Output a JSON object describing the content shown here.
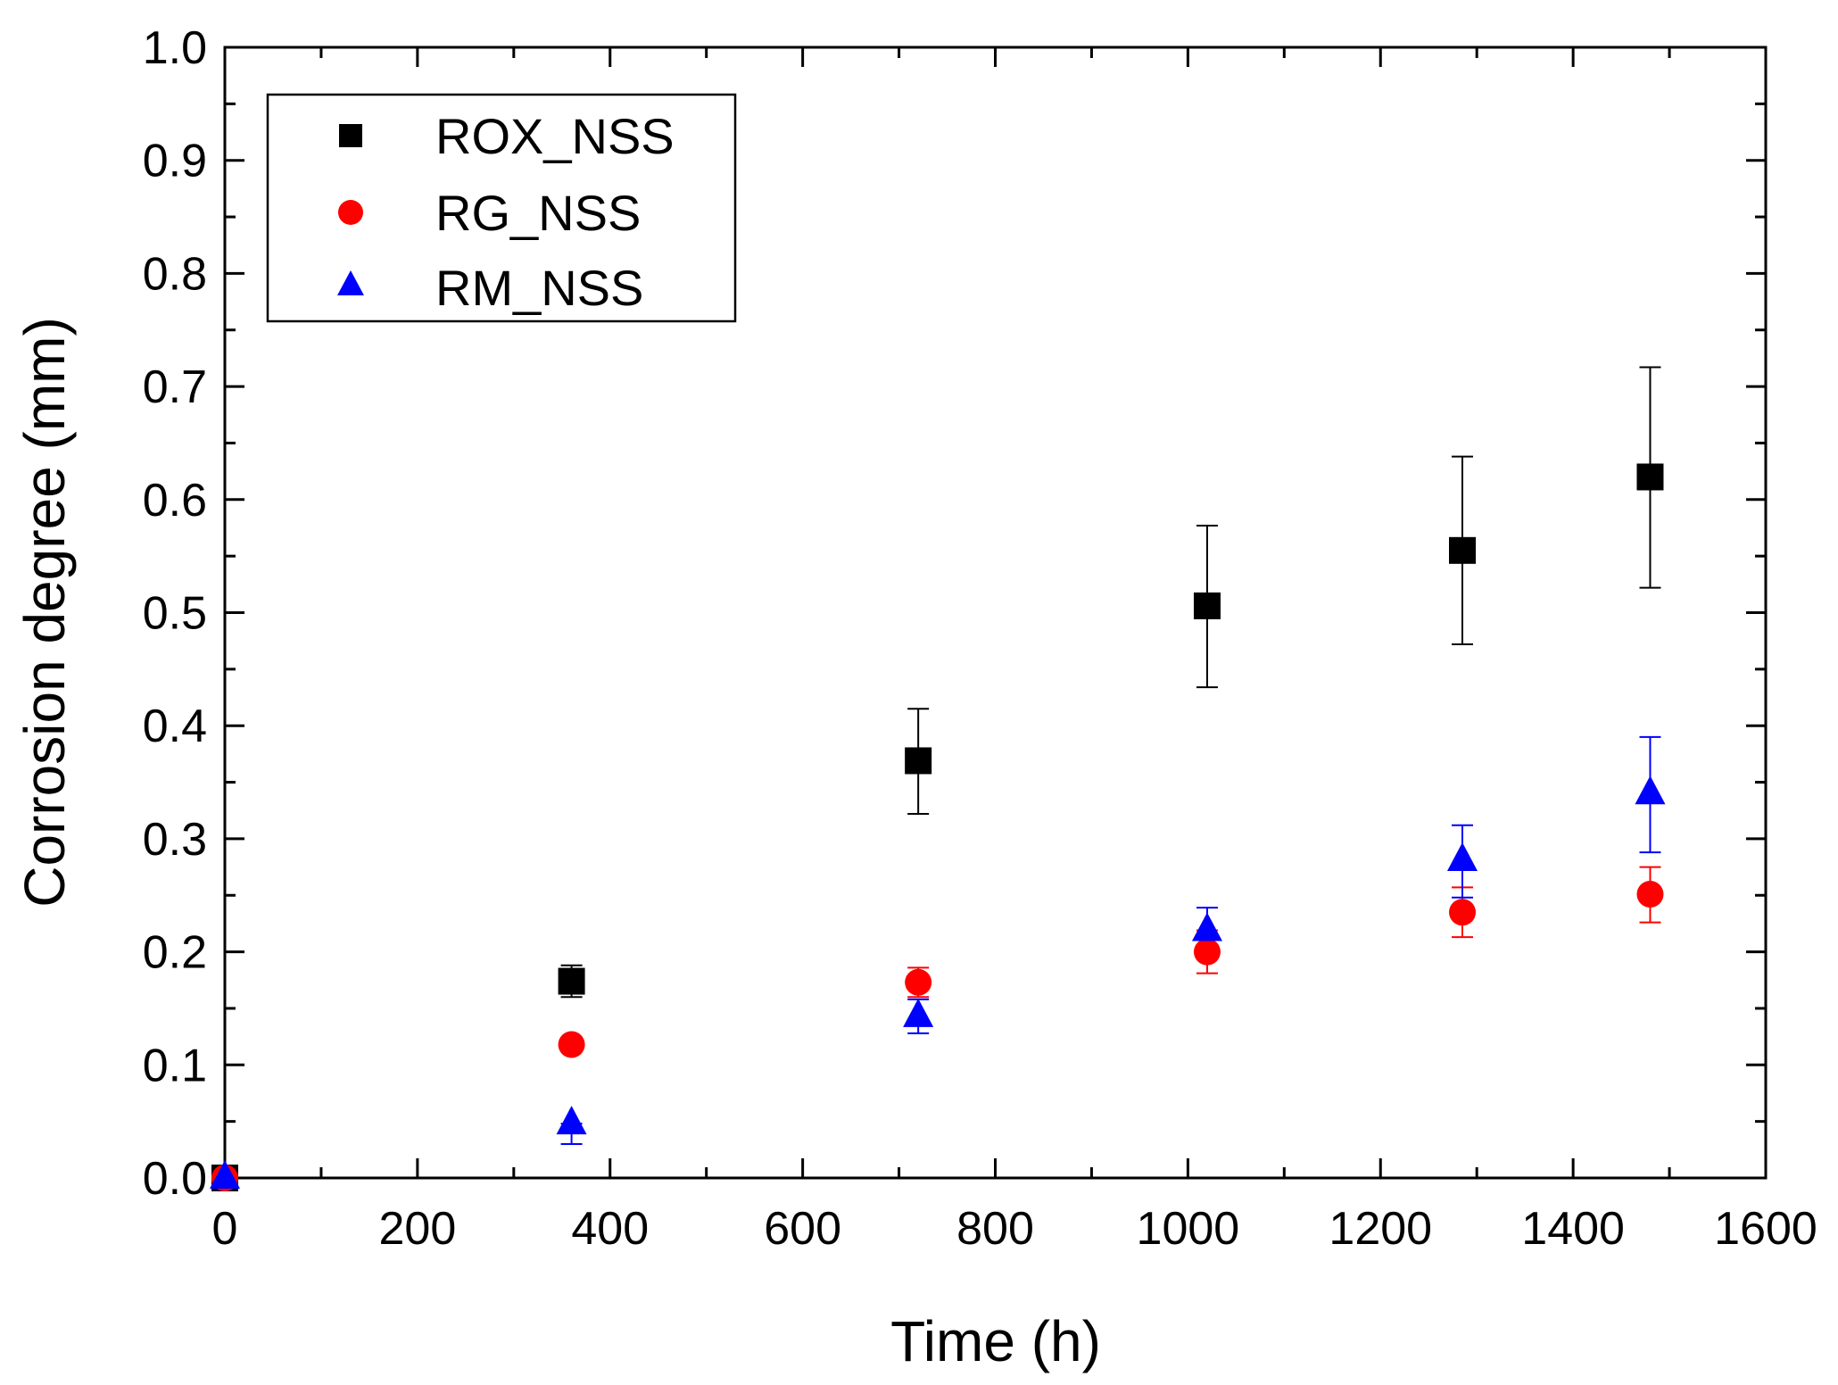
{
  "chart_data": {
    "type": "scatter",
    "title": "",
    "xlabel": "Time  (h)",
    "ylabel": "Corrosion degree (mm)",
    "xlim": [
      0,
      1600
    ],
    "ylim": [
      0,
      1.0
    ],
    "x_major_ticks": [
      0,
      200,
      400,
      600,
      800,
      1000,
      1200,
      1400,
      1600
    ],
    "x_tick_labels": [
      "0",
      "200",
      "400",
      "600",
      "800",
      "1000",
      "1200",
      "1400",
      "1600"
    ],
    "x_minor_step": 100,
    "y_major_ticks": [
      0,
      0.1,
      0.2,
      0.3,
      0.4,
      0.5,
      0.6,
      0.7,
      0.8,
      0.9,
      1.0
    ],
    "y_tick_labels": [
      "0.0",
      "0.1",
      "0.2",
      "0.3",
      "0.4",
      "0.5",
      "0.6",
      "0.7",
      "0.8",
      "0.9",
      "1.0"
    ],
    "y_minor_step": 0.05,
    "grid": false,
    "legend_position": "top-left",
    "series": [
      {
        "name": "ROX_NSS",
        "marker": "square",
        "color": "#000000",
        "x": [
          0,
          360,
          720,
          1020,
          1285,
          1480
        ],
        "y": [
          0,
          0.174,
          0.369,
          0.506,
          0.555,
          0.62
        ],
        "err_low": [
          0,
          0.16,
          0.322,
          0.434,
          0.472,
          0.522
        ],
        "err_high": [
          0,
          0.188,
          0.415,
          0.577,
          0.638,
          0.717
        ]
      },
      {
        "name": "RG_NSS",
        "marker": "circle",
        "color": "#ff0000",
        "x": [
          0,
          360,
          720,
          1020,
          1285,
          1480
        ],
        "y": [
          0,
          0.118,
          0.173,
          0.2,
          0.235,
          0.251
        ],
        "err_low": [
          0,
          0.118,
          0.16,
          0.181,
          0.213,
          0.226
        ],
        "err_high": [
          0,
          0.118,
          0.186,
          0.219,
          0.257,
          0.275
        ]
      },
      {
        "name": "RM_NSS",
        "marker": "triangle",
        "color": "#0000ff",
        "x": [
          0,
          360,
          720,
          1020,
          1285,
          1480
        ],
        "y": [
          0,
          0.048,
          0.143,
          0.219,
          0.281,
          0.34
        ],
        "err_low": [
          0,
          0.03,
          0.128,
          0.2,
          0.248,
          0.288
        ],
        "err_high": [
          0,
          0.048,
          0.158,
          0.239,
          0.312,
          0.39
        ]
      }
    ]
  }
}
